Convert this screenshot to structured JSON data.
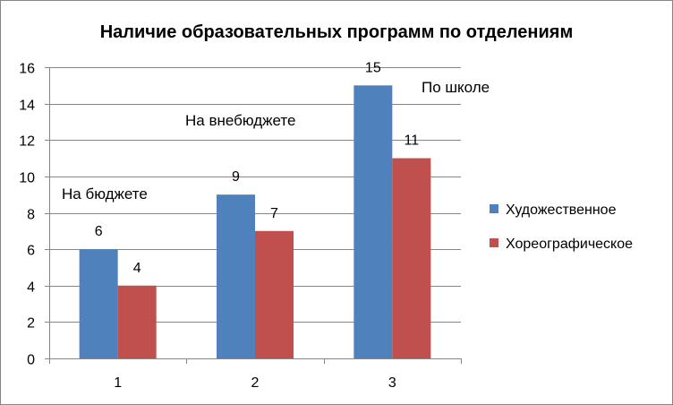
{
  "chart_data": {
    "type": "bar",
    "title": "Наличие образовательных программ по отделениям",
    "categories": [
      "1",
      "2",
      "3"
    ],
    "series": [
      {
        "name": "Художественное",
        "values": [
          6,
          9,
          15
        ],
        "color": "#4F81BD"
      },
      {
        "name": "Хореографическое",
        "values": [
          4,
          7,
          11
        ],
        "color": "#C0504D"
      }
    ],
    "ylim": [
      0,
      16
    ],
    "yticks": [
      0,
      2,
      4,
      6,
      8,
      10,
      12,
      14,
      16
    ],
    "grid": true,
    "legend": "right",
    "annotations": [
      "На бюджете",
      "На внебюджете",
      "По школе"
    ]
  }
}
